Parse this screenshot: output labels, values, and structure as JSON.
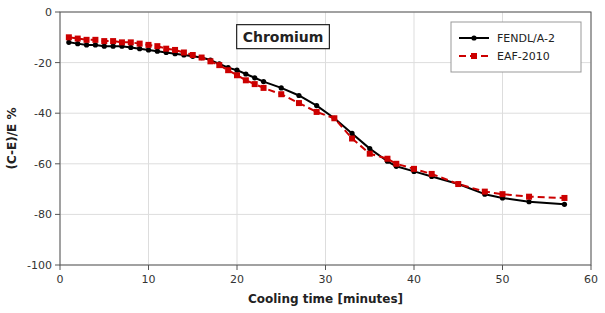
{
  "chart_data": {
    "type": "line",
    "xlabel": "Cooling time [minutes]",
    "ylabel": "(C-E)/E %",
    "annotation": "Chromium",
    "x": [
      1,
      2,
      3,
      4,
      5,
      6,
      7,
      8,
      9,
      10,
      11,
      12,
      13,
      14,
      15,
      16,
      17,
      18,
      19,
      20,
      21,
      22,
      23,
      25,
      27,
      29,
      31,
      33,
      35,
      37,
      38,
      40,
      42,
      45,
      48,
      50,
      53,
      57
    ],
    "series": [
      {
        "name": "FENDL/A-2",
        "color": "#000000",
        "marker": "circle",
        "line_style": "solid",
        "values": [
          -12,
          -12.5,
          -13,
          -13,
          -13.5,
          -13.5,
          -13.5,
          -14,
          -14.5,
          -15,
          -15.5,
          -16,
          -16.5,
          -17,
          -17.5,
          -18,
          -19,
          -20.5,
          -22,
          -23,
          -24.5,
          -26,
          -27.5,
          -30,
          -33,
          -37,
          -42,
          -48,
          -54,
          -59,
          -61,
          -63,
          -65,
          -68,
          -72,
          -73.5,
          -75,
          -76
        ]
      },
      {
        "name": "EAF-2010",
        "color": "#cc0000",
        "marker": "square",
        "line_style": "dashed",
        "values": [
          -10,
          -10.5,
          -11,
          -11,
          -11.5,
          -11.5,
          -12,
          -12,
          -12.5,
          -13,
          -13.5,
          -14.5,
          -15,
          -16,
          -17,
          -18,
          -19.5,
          -21,
          -23,
          -25,
          -27,
          -28.5,
          -30,
          -32.5,
          -36,
          -39.5,
          -42,
          -50,
          -56,
          -58,
          -60,
          -62,
          -64,
          -68,
          -71,
          -72,
          -73,
          -73.5
        ]
      }
    ],
    "xlim": [
      0,
      60
    ],
    "ylim": [
      -100,
      0
    ],
    "xticks": [
      0,
      10,
      20,
      30,
      40,
      50,
      60
    ],
    "yticks": [
      0,
      -20,
      -40,
      -60,
      -80,
      -100
    ],
    "grid": true,
    "legend": "upper right"
  }
}
